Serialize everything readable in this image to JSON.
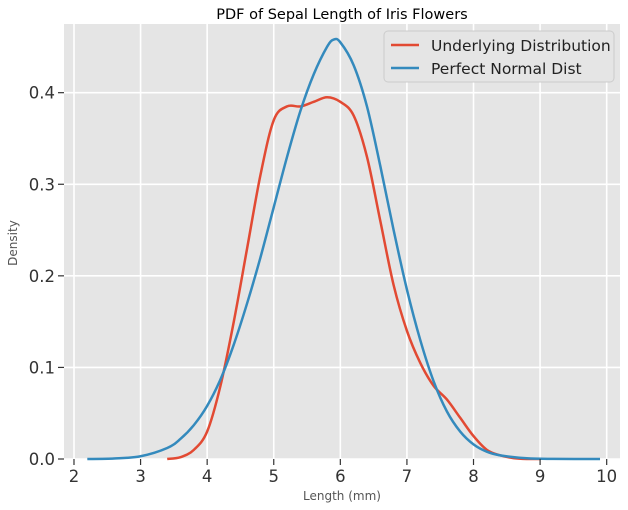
{
  "chart_data": {
    "type": "line",
    "title": "PDF of Sepal Length of Iris Flowers",
    "xlabel": "Length (mm)",
    "ylabel": "Density",
    "xlim": [
      1.85,
      10.2
    ],
    "ylim": [
      0,
      0.475
    ],
    "x_ticks": [
      "2",
      "3",
      "4",
      "5",
      "6",
      "7",
      "8",
      "9",
      "10"
    ],
    "y_ticks": [
      "0.0",
      "0.1",
      "0.2",
      "0.3",
      "0.4"
    ],
    "grid": true,
    "legend_placement": "top-right",
    "series": [
      {
        "name": "Underlying Distribution",
        "color": "#e24a33",
        "x": [
          3.4,
          3.6,
          3.8,
          4.0,
          4.2,
          4.4,
          4.6,
          4.8,
          5.0,
          5.2,
          5.4,
          5.6,
          5.8,
          6.0,
          6.2,
          6.4,
          6.6,
          6.8,
          7.0,
          7.2,
          7.4,
          7.6,
          7.8,
          8.0,
          8.2,
          8.4,
          8.6,
          8.8,
          9.0
        ],
        "y": [
          0.0,
          0.002,
          0.01,
          0.03,
          0.08,
          0.15,
          0.23,
          0.31,
          0.37,
          0.385,
          0.385,
          0.39,
          0.395,
          0.39,
          0.375,
          0.33,
          0.26,
          0.19,
          0.14,
          0.105,
          0.08,
          0.065,
          0.045,
          0.025,
          0.01,
          0.004,
          0.001,
          0.0,
          0.0
        ]
      },
      {
        "name": "Perfect Normal Dist",
        "color": "#348abd",
        "x": [
          2.2,
          2.6,
          3.0,
          3.4,
          3.6,
          3.8,
          4.0,
          4.2,
          4.4,
          4.6,
          4.8,
          5.0,
          5.2,
          5.4,
          5.6,
          5.8,
          5.9,
          6.0,
          6.2,
          6.4,
          6.6,
          6.8,
          7.0,
          7.2,
          7.4,
          7.6,
          7.8,
          8.0,
          8.2,
          8.4,
          8.8,
          9.2,
          9.9
        ],
        "y": [
          0.0,
          0.0005,
          0.003,
          0.012,
          0.022,
          0.037,
          0.058,
          0.087,
          0.125,
          0.17,
          0.22,
          0.275,
          0.33,
          0.38,
          0.42,
          0.45,
          0.458,
          0.455,
          0.43,
          0.385,
          0.32,
          0.25,
          0.185,
          0.13,
          0.085,
          0.052,
          0.03,
          0.016,
          0.008,
          0.004,
          0.0008,
          0.0001,
          0.0
        ]
      }
    ]
  }
}
